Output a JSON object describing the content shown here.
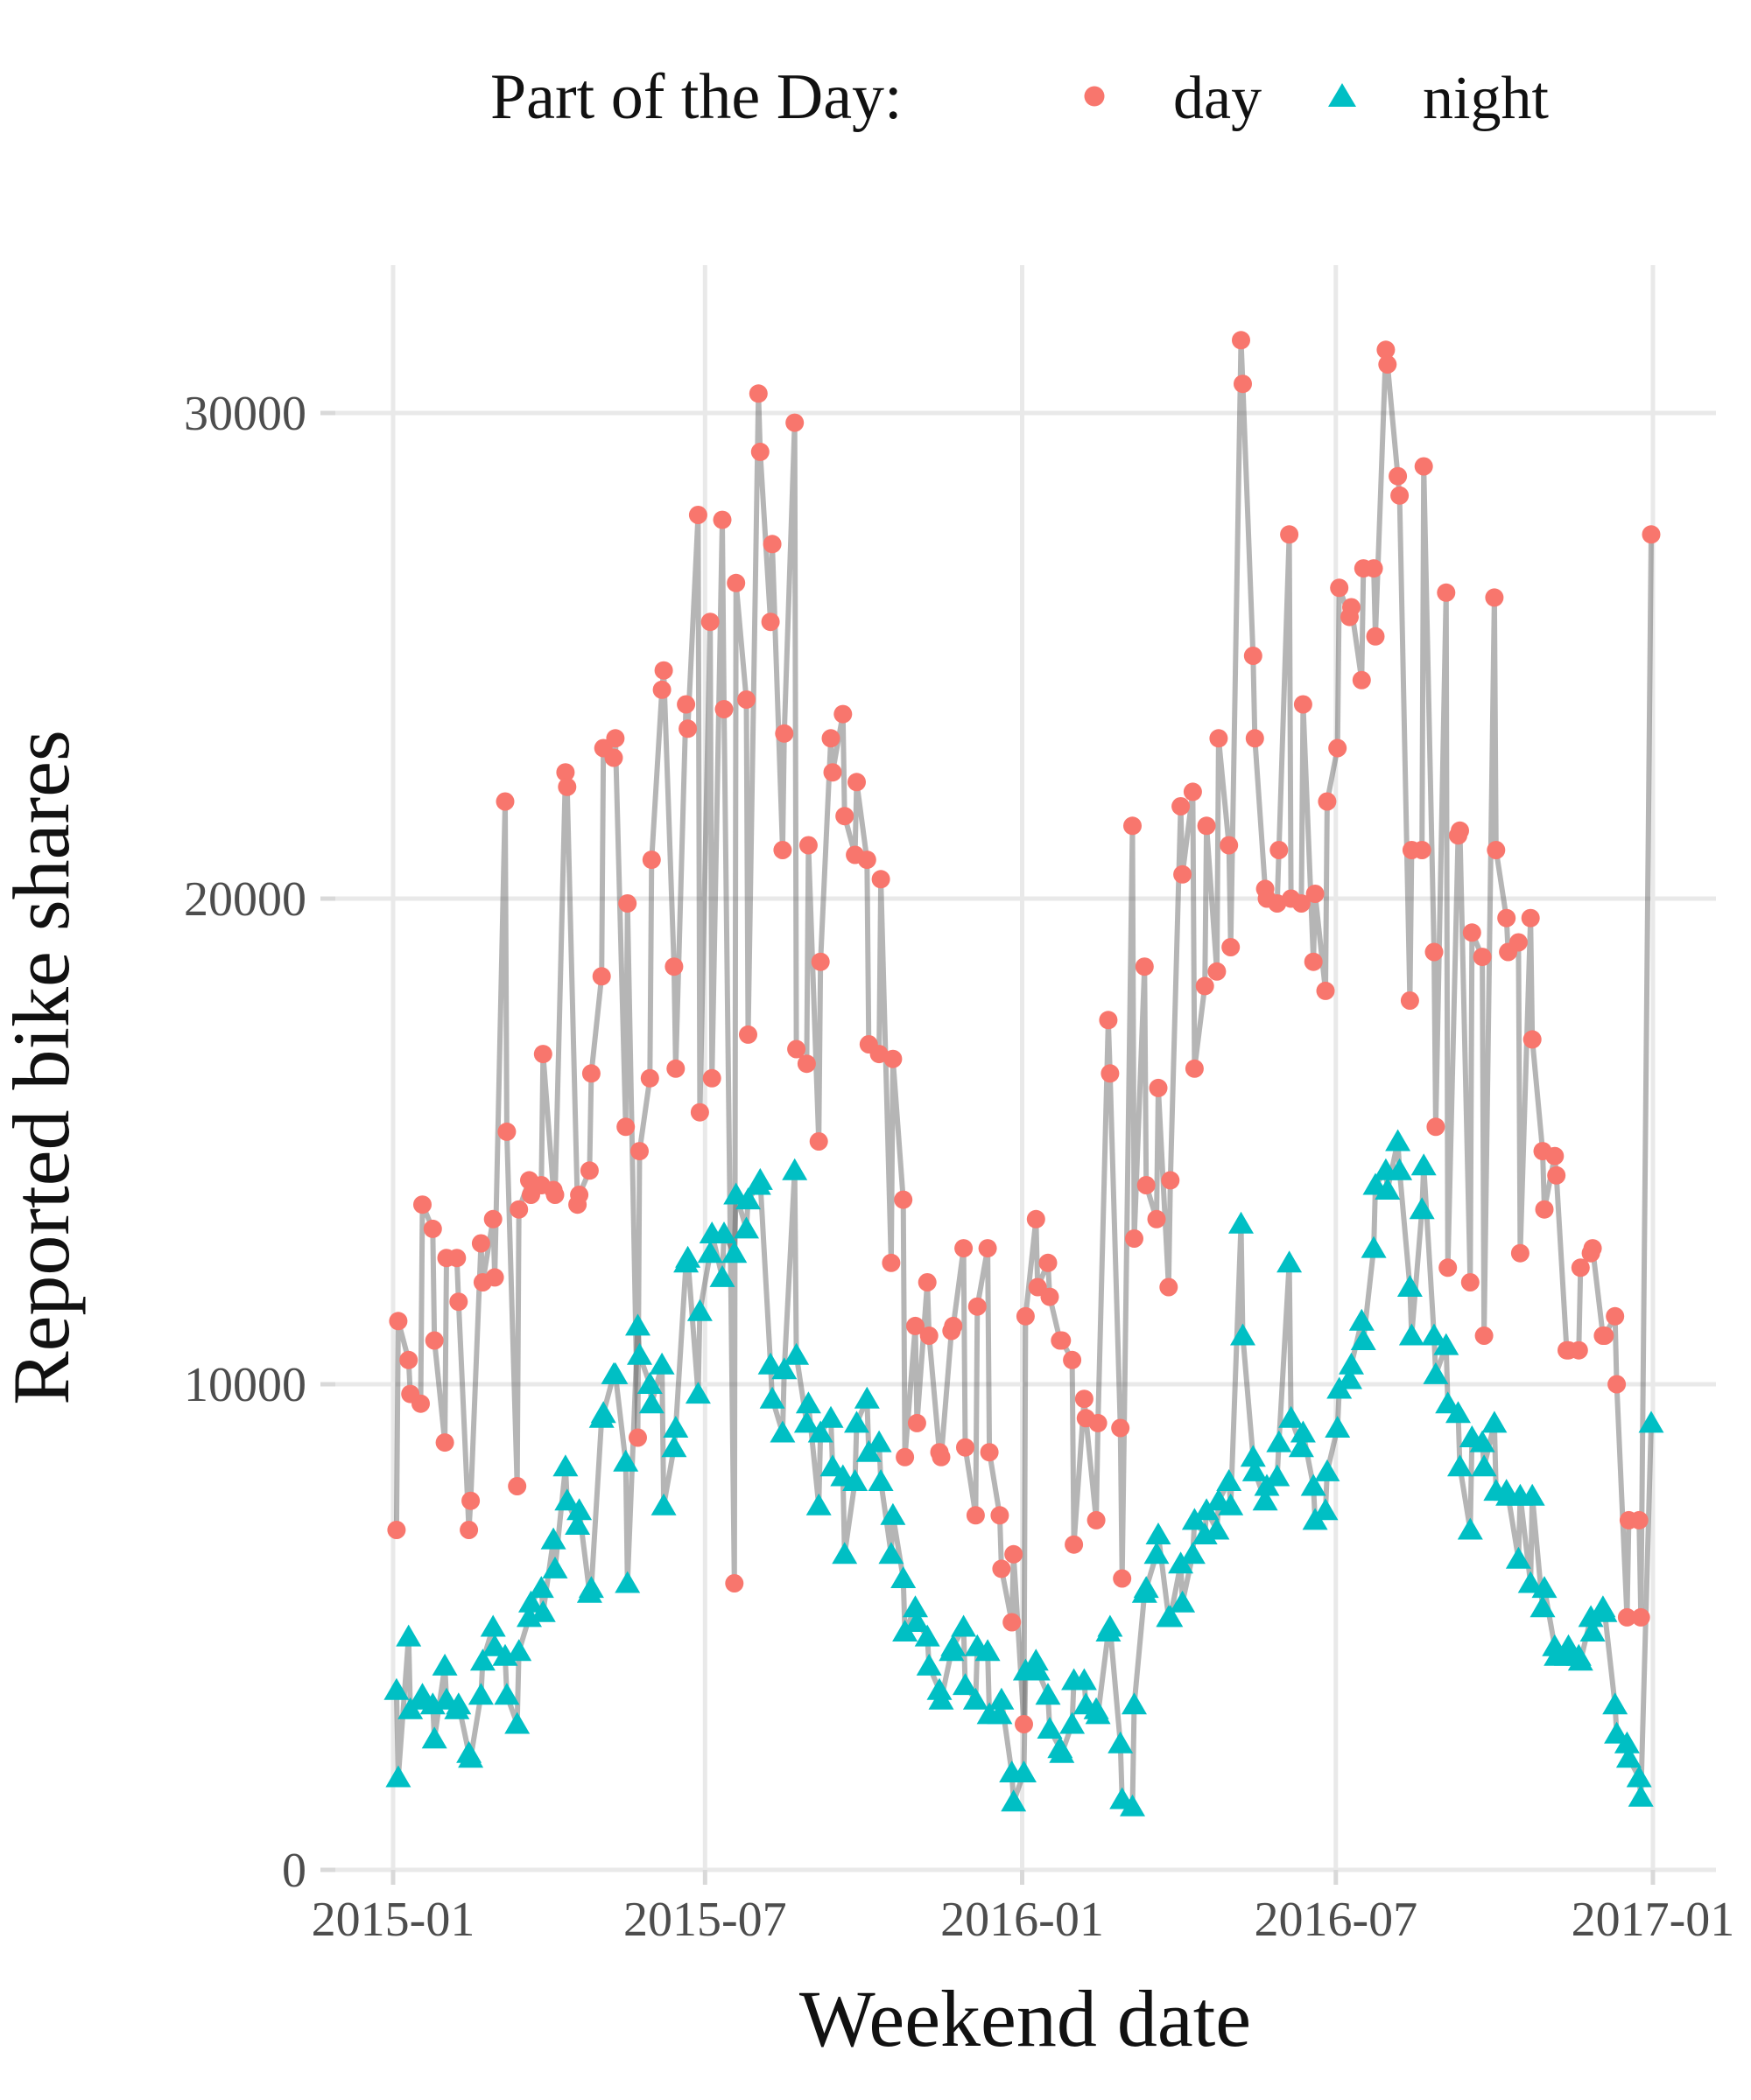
{
  "legend": {
    "title": "Part of the Day:",
    "items": [
      {
        "label": "day",
        "marker": "circle",
        "color": "#F8766D"
      },
      {
        "label": "night",
        "marker": "triangle",
        "color": "#00BFC4"
      }
    ]
  },
  "styles": {
    "background": "#FFFFFF",
    "grid_color": "#E9E9E9",
    "tick_color": "#D9D9D9",
    "line_color": "#5A5A5A",
    "line_opacity": 0.45,
    "tick_label_color": "#4D4D4D",
    "title_color": "#111111",
    "day_color": "#F8766D",
    "night_color": "#00BFC4"
  },
  "chart_data": {
    "type": "scatter",
    "subtype": "line+marker scatter of weekend observations",
    "title": "",
    "xlabel": "Weekend date",
    "ylabel": "Reported bike shares",
    "legend_position": "top",
    "grid": "major only",
    "x_ticks": [
      {
        "label": "2015-01",
        "date": "2015-01-01"
      },
      {
        "label": "2015-07",
        "date": "2015-07-01"
      },
      {
        "label": "2016-01",
        "date": "2016-01-01"
      },
      {
        "label": "2016-07",
        "date": "2016-07-01"
      },
      {
        "label": "2017-01",
        "date": "2017-01-01"
      }
    ],
    "y_ticks": [
      {
        "label": "0",
        "value": 0
      },
      {
        "label": "10000",
        "value": 10000
      },
      {
        "label": "20000",
        "value": 20000
      },
      {
        "label": "30000",
        "value": 30000
      }
    ],
    "xlim": [
      "2014-11-28",
      "2017-02-04"
    ],
    "ylim": [
      0,
      33050
    ],
    "series_note": "each weekend entry = [Saturday value, Sunday value]; last weekend (2016-12-31) has Saturday only",
    "weekends": [
      {
        "weekend": "2015-01-03",
        "day": [
          7000,
          11300
        ],
        "night": [
          3700,
          1900
        ]
      },
      {
        "weekend": "2015-01-10",
        "day": [
          10500,
          9800
        ],
        "night": [
          4800,
          3300
        ]
      },
      {
        "weekend": "2015-01-17",
        "day": [
          9600,
          13700
        ],
        "night": [
          3500,
          3600
        ]
      },
      {
        "weekend": "2015-01-24",
        "day": [
          13200,
          10900
        ],
        "night": [
          3400,
          2700
        ]
      },
      {
        "weekend": "2015-01-31",
        "day": [
          8800,
          12600
        ],
        "night": [
          4200,
          3500
        ]
      },
      {
        "weekend": "2015-02-07",
        "day": [
          12600,
          11700
        ],
        "night": [
          3300,
          3400
        ]
      },
      {
        "weekend": "2015-02-14",
        "day": [
          7000,
          7600
        ],
        "night": [
          2400,
          2300
        ]
      },
      {
        "weekend": "2015-02-21",
        "day": [
          12900,
          12100
        ],
        "night": [
          3600,
          4300
        ]
      },
      {
        "weekend": "2015-02-28",
        "day": [
          13400,
          12200
        ],
        "night": [
          5000,
          4600
        ]
      },
      {
        "weekend": "2015-03-07",
        "day": [
          22000,
          15200
        ],
        "night": [
          4400,
          3600
        ]
      },
      {
        "weekend": "2015-03-14",
        "day": [
          7900,
          13600
        ],
        "night": [
          3000,
          4500
        ]
      },
      {
        "weekend": "2015-03-21",
        "day": [
          14200,
          13900
        ],
        "night": [
          5200,
          5500
        ]
      },
      {
        "weekend": "2015-03-28",
        "day": [
          14100,
          16800
        ],
        "night": [
          5800,
          5300
        ]
      },
      {
        "weekend": "2015-04-04",
        "day": [
          14000,
          13900
        ],
        "night": [
          6800,
          6200
        ]
      },
      {
        "weekend": "2015-04-11",
        "day": [
          22600,
          22300
        ],
        "night": [
          8300,
          7600
        ]
      },
      {
        "weekend": "2015-04-18",
        "day": [
          13700,
          13900
        ],
        "night": [
          7100,
          7400
        ]
      },
      {
        "weekend": "2015-04-25",
        "day": [
          14400,
          16400
        ],
        "night": [
          5700,
          5800
        ]
      },
      {
        "weekend": "2015-05-02",
        "day": [
          18400,
          23100
        ],
        "night": [
          9300,
          9400
        ]
      },
      {
        "weekend": "2015-05-09",
        "day": [
          22900,
          23300
        ],
        "night": [
          10200,
          10200
        ]
      },
      {
        "weekend": "2015-05-16",
        "day": [
          15300,
          19900
        ],
        "night": [
          8400,
          5900
        ]
      },
      {
        "weekend": "2015-05-23",
        "day": [
          8900,
          14800
        ],
        "night": [
          11200,
          10600
        ]
      },
      {
        "weekend": "2015-05-30",
        "day": [
          16300,
          20800
        ],
        "night": [
          10000,
          9600
        ]
      },
      {
        "weekend": "2015-06-06",
        "day": [
          24300,
          24700
        ],
        "night": [
          10400,
          7500
        ]
      },
      {
        "weekend": "2015-06-13",
        "day": [
          18600,
          16500
        ],
        "night": [
          8700,
          9100
        ]
      },
      {
        "weekend": "2015-06-20",
        "day": [
          24000,
          23500
        ],
        "night": [
          12500,
          12600
        ]
      },
      {
        "weekend": "2015-06-27",
        "day": [
          27900,
          15600
        ],
        "night": [
          9800,
          11500
        ]
      },
      {
        "weekend": "2015-07-04",
        "day": [
          25700,
          16300
        ],
        "night": [
          12700,
          13100
        ]
      },
      {
        "weekend": "2015-07-11",
        "day": [
          27800,
          23900
        ],
        "night": [
          12200,
          13100
        ]
      },
      {
        "weekend": "2015-07-18",
        "day": [
          5900,
          26500
        ],
        "night": [
          12700,
          13900
        ]
      },
      {
        "weekend": "2015-07-25",
        "day": [
          24100,
          17200
        ],
        "night": [
          13200,
          13800
        ]
      },
      {
        "weekend": "2015-08-01",
        "day": [
          30400,
          29200
        ],
        "night": [
          14100,
          14200
        ]
      },
      {
        "weekend": "2015-08-08",
        "day": [
          25700,
          27300
        ],
        "night": [
          10400,
          9700
        ]
      },
      {
        "weekend": "2015-08-15",
        "day": [
          21000,
          23400
        ],
        "night": [
          9000,
          10300
        ]
      },
      {
        "weekend": "2015-08-22",
        "day": [
          29800,
          16900
        ],
        "night": [
          14400,
          10600
        ]
      },
      {
        "weekend": "2015-08-29",
        "day": [
          16600,
          21100
        ],
        "night": [
          9200,
          9600
        ]
      },
      {
        "weekend": "2015-09-05",
        "day": [
          15000,
          18700
        ],
        "night": [
          7500,
          9000
        ]
      },
      {
        "weekend": "2015-09-12",
        "day": [
          23300,
          22600
        ],
        "night": [
          9300,
          8300
        ]
      },
      {
        "weekend": "2015-09-19",
        "day": [
          23800,
          21700
        ],
        "night": [
          8100,
          6500
        ]
      },
      {
        "weekend": "2015-09-26",
        "day": [
          20900,
          22400
        ],
        "night": [
          8000,
          9200
        ]
      },
      {
        "weekend": "2015-10-03",
        "day": [
          20800,
          17000
        ],
        "night": [
          9700,
          8600
        ]
      },
      {
        "weekend": "2015-10-10",
        "day": [
          16800,
          20400
        ],
        "night": [
          8800,
          8000
        ]
      },
      {
        "weekend": "2015-10-17",
        "day": [
          12500,
          16700
        ],
        "night": [
          6500,
          7300
        ]
      },
      {
        "weekend": "2015-10-24",
        "day": [
          13800,
          8500
        ],
        "night": [
          6000,
          4900
        ]
      },
      {
        "weekend": "2015-10-31",
        "day": [
          11200,
          9200
        ],
        "night": [
          5400,
          5100
        ]
      },
      {
        "weekend": "2015-11-07",
        "day": [
          12100,
          11000
        ],
        "night": [
          4800,
          4200
        ]
      },
      {
        "weekend": "2015-11-14",
        "day": [
          8600,
          8500
        ],
        "night": [
          3700,
          3500
        ]
      },
      {
        "weekend": "2015-11-21",
        "day": [
          11100,
          11200
        ],
        "night": [
          4500,
          4600
        ]
      },
      {
        "weekend": "2015-11-28",
        "day": [
          12800,
          8700
        ],
        "night": [
          5000,
          3800
        ]
      },
      {
        "weekend": "2015-12-05",
        "day": [
          7300,
          11600
        ],
        "night": [
          3500,
          4600
        ]
      },
      {
        "weekend": "2015-12-12",
        "day": [
          12800,
          8600
        ],
        "night": [
          4500,
          3200
        ]
      },
      {
        "weekend": "2015-12-19",
        "day": [
          7300,
          6200
        ],
        "night": [
          3200,
          3500
        ]
      },
      {
        "weekend": "2015-12-26",
        "day": [
          5100,
          6500
        ],
        "night": [
          2000,
          1400
        ]
      },
      {
        "weekend": "2016-01-02",
        "day": [
          3000,
          11400
        ],
        "night": [
          2000,
          4100
        ]
      },
      {
        "weekend": "2016-01-09",
        "day": [
          13400,
          12000
        ],
        "night": [
          4300,
          4100
        ]
      },
      {
        "weekend": "2016-01-16",
        "day": [
          12500,
          11800
        ],
        "night": [
          3600,
          2900
        ]
      },
      {
        "weekend": "2016-01-23",
        "day": [
          10900,
          10900
        ],
        "night": [
          2500,
          2400
        ]
      },
      {
        "weekend": "2016-01-30",
        "day": [
          10500,
          6700
        ],
        "night": [
          3000,
          3900
        ]
      },
      {
        "weekend": "2016-02-06",
        "day": [
          9700,
          9300
        ],
        "night": [
          3900,
          3400
        ]
      },
      {
        "weekend": "2016-02-13",
        "day": [
          7200,
          9200
        ],
        "night": [
          3300,
          3200
        ]
      },
      {
        "weekend": "2016-02-20",
        "day": [
          17500,
          16400
        ],
        "night": [
          4900,
          5000
        ]
      },
      {
        "weekend": "2016-02-27",
        "day": [
          9100,
          6000
        ],
        "night": [
          2600,
          1450
        ]
      },
      {
        "weekend": "2016-03-05",
        "day": [
          21500,
          13000
        ],
        "night": [
          1300,
          3400
        ]
      },
      {
        "weekend": "2016-03-12",
        "day": [
          18600,
          14100
        ],
        "night": [
          5700,
          5800
        ]
      },
      {
        "weekend": "2016-03-19",
        "day": [
          13400,
          16100
        ],
        "night": [
          6500,
          6900
        ]
      },
      {
        "weekend": "2016-03-26",
        "day": [
          12000,
          14200
        ],
        "night": [
          5200,
          5200
        ]
      },
      {
        "weekend": "2016-04-02",
        "day": [
          21900,
          20500
        ],
        "night": [
          6300,
          5500
        ]
      },
      {
        "weekend": "2016-04-09",
        "day": [
          22200,
          16500
        ],
        "night": [
          6500,
          7200
        ]
      },
      {
        "weekend": "2016-04-16",
        "day": [
          18200,
          21500
        ],
        "night": [
          6900,
          7400
        ]
      },
      {
        "weekend": "2016-04-23",
        "day": [
          18500,
          23300
        ],
        "night": [
          7000,
          7600
        ]
      },
      {
        "weekend": "2016-04-30",
        "day": [
          21100,
          19000
        ],
        "night": [
          8000,
          7500
        ]
      },
      {
        "weekend": "2016-05-07",
        "day": [
          31500,
          30600
        ],
        "night": [
          13300,
          11000
        ]
      },
      {
        "weekend": "2016-05-14",
        "day": [
          25000,
          23300
        ],
        "night": [
          8500,
          8200
        ]
      },
      {
        "weekend": "2016-05-21",
        "day": [
          20200,
          20000
        ],
        "night": [
          7600,
          7900
        ]
      },
      {
        "weekend": "2016-05-28",
        "day": [
          19900,
          21000
        ],
        "night": [
          8100,
          8800
        ]
      },
      {
        "weekend": "2016-06-04",
        "day": [
          27500,
          20000
        ],
        "night": [
          12500,
          9300
        ]
      },
      {
        "weekend": "2016-06-11",
        "day": [
          19900,
          24000
        ],
        "night": [
          8700,
          9000
        ]
      },
      {
        "weekend": "2016-06-18",
        "day": [
          18700,
          20100
        ],
        "night": [
          7900,
          7200
        ]
      },
      {
        "weekend": "2016-06-25",
        "day": [
          18100,
          22000
        ],
        "night": [
          7400,
          8200
        ]
      },
      {
        "weekend": "2016-07-02",
        "day": [
          23100,
          26400
        ],
        "night": [
          9100,
          9900
        ]
      },
      {
        "weekend": "2016-07-09",
        "day": [
          25800,
          26000
        ],
        "night": [
          10100,
          10400
        ]
      },
      {
        "weekend": "2016-07-16",
        "day": [
          24500,
          26800
        ],
        "night": [
          11300,
          10900
        ]
      },
      {
        "weekend": "2016-07-23",
        "day": [
          26800,
          25400
        ],
        "night": [
          12800,
          14100
        ]
      },
      {
        "weekend": "2016-07-30",
        "day": [
          31300,
          31000
        ],
        "night": [
          14400,
          14000
        ]
      },
      {
        "weekend": "2016-08-06",
        "day": [
          28700,
          28300
        ],
        "night": [
          15000,
          14400
        ]
      },
      {
        "weekend": "2016-08-13",
        "day": [
          17900,
          21000
        ],
        "night": [
          12000,
          11000
        ]
      },
      {
        "weekend": "2016-08-20",
        "day": [
          21000,
          28900
        ],
        "night": [
          13600,
          14500
        ]
      },
      {
        "weekend": "2016-08-27",
        "day": [
          18900,
          15300
        ],
        "night": [
          11000,
          10200
        ]
      },
      {
        "weekend": "2016-09-03",
        "day": [
          26300,
          12400
        ],
        "night": [
          10800,
          9600
        ]
      },
      {
        "weekend": "2016-09-10",
        "day": [
          21300,
          21400
        ],
        "night": [
          9400,
          8300
        ]
      },
      {
        "weekend": "2016-09-17",
        "day": [
          12100,
          19300
        ],
        "night": [
          7000,
          8900
        ]
      },
      {
        "weekend": "2016-09-24",
        "day": [
          18800,
          11000
        ],
        "night": [
          8800,
          8300
        ]
      },
      {
        "weekend": "2016-10-01",
        "day": [
          26200,
          21000
        ],
        "night": [
          9200,
          7800
        ]
      },
      {
        "weekend": "2016-10-08",
        "day": [
          19600,
          18900
        ],
        "night": [
          7800,
          7700
        ]
      },
      {
        "weekend": "2016-10-15",
        "day": [
          19100,
          12700
        ],
        "night": [
          6400,
          7700
        ]
      },
      {
        "weekend": "2016-10-22",
        "day": [
          19600,
          17100
        ],
        "night": [
          5900,
          7700
        ]
      },
      {
        "weekend": "2016-10-29",
        "day": [
          14800,
          13600
        ],
        "night": [
          5400,
          5800
        ]
      },
      {
        "weekend": "2016-11-05",
        "day": [
          14700,
          14300
        ],
        "night": [
          4600,
          4400
        ]
      },
      {
        "weekend": "2016-11-12",
        "day": [
          10700,
          10700
        ],
        "night": [
          4400,
          4600
        ]
      },
      {
        "weekend": "2016-11-19",
        "day": [
          10700,
          12400
        ],
        "night": [
          4400,
          4300
        ]
      },
      {
        "weekend": "2016-11-26",
        "day": [
          12700,
          12800
        ],
        "night": [
          5200,
          4900
        ]
      },
      {
        "weekend": "2016-12-03",
        "day": [
          11000,
          11000
        ],
        "night": [
          5400,
          5300
        ]
      },
      {
        "weekend": "2016-12-10",
        "day": [
          11400,
          10000
        ],
        "night": [
          3400,
          2800
        ]
      },
      {
        "weekend": "2016-12-17",
        "day": [
          5200,
          7200
        ],
        "night": [
          2600,
          2300
        ]
      },
      {
        "weekend": "2016-12-24",
        "day": [
          7200,
          5200
        ],
        "night": [
          1900,
          1500
        ]
      },
      {
        "weekend": "2016-12-31",
        "day": [
          27500
        ],
        "night": [
          9200
        ]
      }
    ]
  }
}
